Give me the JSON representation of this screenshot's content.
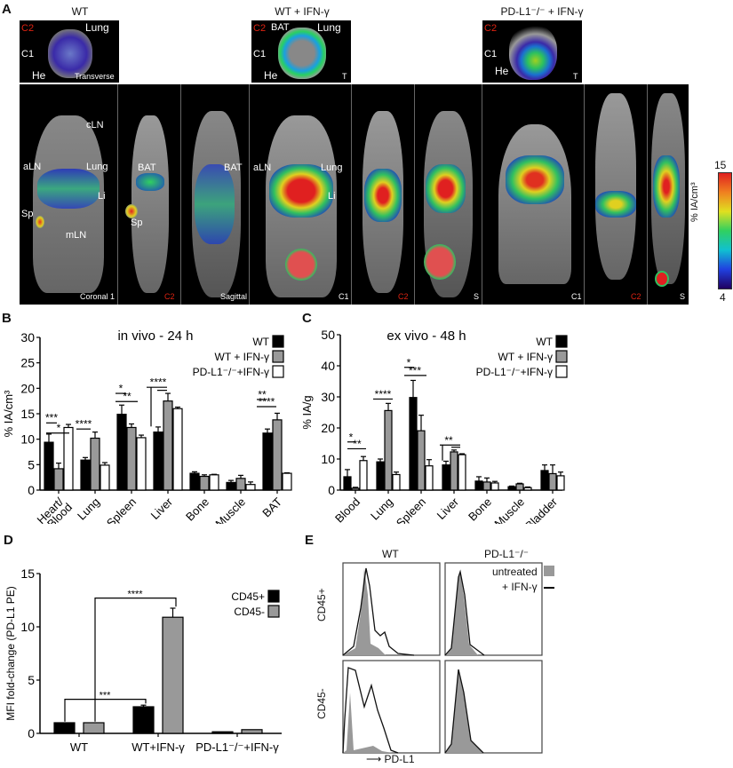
{
  "panelA": {
    "letter": "A",
    "groups": [
      {
        "title": "WT",
        "transverse_labels": [
          "Lung",
          "He",
          "Transverse",
          "C2",
          "C1"
        ],
        "coronal_labels": [
          "cLN",
          "aLN",
          "Lung",
          "Li",
          "Sp",
          "mLN",
          "Coronal 1"
        ],
        "c2_labels": [
          "BAT",
          "Sp",
          "C2"
        ],
        "sagittal_labels": [
          "BAT",
          "Sagittal"
        ]
      },
      {
        "title": "WT + IFN-γ",
        "transverse_labels": [
          "BAT",
          "Lung",
          "He",
          "T",
          "C2",
          "C1"
        ],
        "coronal_labels": [
          "aLN",
          "Lung",
          "Li",
          "C1"
        ],
        "c2_labels": [
          "C2"
        ],
        "sagittal_labels": [
          "S"
        ]
      },
      {
        "title": "PD-L1⁻/⁻ + IFN-γ",
        "transverse_labels": [
          "He",
          "T",
          "C2",
          "C1"
        ],
        "coronal_labels": [
          "C1"
        ],
        "c2_labels": [
          "C2"
        ],
        "sagittal_labels": [
          "S"
        ]
      }
    ],
    "colorbar": {
      "max": "15",
      "min": "4",
      "label": "% IA/cm³"
    }
  },
  "chart_data": [
    {
      "panel": "B",
      "type": "bar",
      "title": "in vivo - 24 h",
      "xlabel": "",
      "ylabel": "% IA/cm³",
      "ylim": [
        0,
        30
      ],
      "yticks": [
        0,
        5,
        10,
        15,
        20,
        25,
        30
      ],
      "categories": [
        "Heart/ Blood",
        "Lung",
        "Spleen",
        "Liver",
        "Bone",
        "Muscle",
        "BAT"
      ],
      "series": [
        {
          "name": "WT",
          "color": "#000000",
          "values": [
            9.4,
            5.9,
            14.9,
            11.4,
            3.3,
            1.5,
            11.2
          ],
          "errors": [
            1.6,
            0.5,
            1.8,
            1.0,
            0.3,
            0.4,
            0.8
          ]
        },
        {
          "name": "WT + IFN-γ",
          "color": "#999999",
          "values": [
            4.2,
            10.2,
            12.3,
            17.5,
            2.7,
            2.3,
            13.8
          ],
          "errors": [
            1.1,
            1.2,
            0.7,
            1.5,
            0.3,
            0.6,
            1.3
          ]
        },
        {
          "name": "PD-L1⁻/⁻+IFN-γ",
          "color": "#ffffff",
          "values": [
            12.3,
            4.9,
            10.3,
            16.0,
            3.0,
            1.1,
            3.3
          ],
          "errors": [
            0.6,
            0.5,
            0.5,
            0.3,
            0.1,
            0.5,
            0.1
          ]
        }
      ],
      "significance": [
        {
          "category": "Heart/ Blood",
          "labels": [
            "***",
            "*"
          ]
        },
        {
          "category": "Lung",
          "labels": [
            "****"
          ]
        },
        {
          "category": "Spleen",
          "labels": [
            "*",
            "**"
          ]
        },
        {
          "category": "Liver",
          "labels": [
            "****"
          ]
        },
        {
          "category": "BAT",
          "labels": [
            "**",
            "****"
          ]
        }
      ],
      "legend_position": "top-right"
    },
    {
      "panel": "C",
      "type": "bar",
      "title": "ex vivo - 48 h",
      "xlabel": "",
      "ylabel": "% IA/g",
      "ylim": [
        0,
        50
      ],
      "yticks": [
        0,
        10,
        20,
        30,
        40,
        50
      ],
      "categories": [
        "Blood",
        "Lung",
        "Spleen",
        "Liver",
        "Bone",
        "Muscle",
        "Bladder"
      ],
      "series": [
        {
          "name": "WT",
          "color": "#000000",
          "values": [
            4.3,
            9.1,
            29.8,
            8.1,
            2.9,
            1.1,
            6.3
          ],
          "errors": [
            2.3,
            0.9,
            5.5,
            1.2,
            1.4,
            0.2,
            1.8
          ]
        },
        {
          "name": "WT + IFN-γ",
          "color": "#999999",
          "values": [
            0.6,
            25.6,
            19.1,
            12.3,
            2.6,
            2.0,
            5.3
          ],
          "errors": [
            0.3,
            2.3,
            5.0,
            0.6,
            1.3,
            0.2,
            2.8
          ]
        },
        {
          "name": "PD-L1⁻/⁻+IFN-γ",
          "color": "#ffffff",
          "values": [
            9.5,
            5.0,
            7.8,
            11.4,
            2.3,
            0.8,
            4.6
          ],
          "errors": [
            1.3,
            0.8,
            2.0,
            0.3,
            0.5,
            0.2,
            1.2
          ]
        }
      ],
      "significance": [
        {
          "category": "Blood",
          "labels": [
            "*",
            "**"
          ]
        },
        {
          "category": "Lung",
          "labels": [
            "****"
          ]
        },
        {
          "category": "Spleen",
          "labels": [
            "*",
            "***"
          ]
        },
        {
          "category": "Liver",
          "labels": [
            "**"
          ]
        }
      ],
      "legend_position": "top-right"
    },
    {
      "panel": "D",
      "type": "bar",
      "title": "",
      "xlabel": "",
      "ylabel": "MFI fold-change (PD-L1 PE)",
      "ylim": [
        0,
        15
      ],
      "yticks": [
        0,
        5,
        10,
        15
      ],
      "categories": [
        "WT",
        "WT+IFN-γ",
        "PD-L1⁻/⁻+IFN-γ"
      ],
      "series": [
        {
          "name": "CD45+",
          "color": "#000000",
          "values": [
            1.0,
            2.5,
            0.15
          ],
          "errors": [
            0,
            0.15,
            0
          ]
        },
        {
          "name": "CD45-",
          "color": "#999999",
          "values": [
            1.0,
            10.9,
            0.35
          ],
          "errors": [
            0,
            0.85,
            0
          ]
        }
      ],
      "significance": [
        {
          "between": [
            "WT CD45+",
            "WT+IFN-γ CD45+"
          ],
          "label": "***"
        },
        {
          "between": [
            "WT CD45-",
            "WT+IFN-γ CD45-"
          ],
          "label": "****"
        }
      ],
      "legend_position": "top-right"
    },
    {
      "panel": "E",
      "type": "histogram",
      "columns": [
        "WT",
        "PD-L1⁻/⁻"
      ],
      "rows": [
        "CD45+",
        "CD45-"
      ],
      "xlabel": "PD-L1",
      "legend": [
        {
          "name": "untreated",
          "style": "filled gray"
        },
        {
          "name": "+ IFN-γ",
          "style": "black line"
        }
      ]
    }
  ],
  "labels": {
    "B": "B",
    "C": "C",
    "D": "D",
    "E": "E",
    "E_col_wt": "WT",
    "E_col_ko": "PD-L1⁻/⁻",
    "E_row_pos": "CD45+",
    "E_row_neg": "CD45-",
    "E_xlabel": "PD-L1",
    "E_leg_untreated": "untreated",
    "E_leg_ifn": "+ IFN-γ"
  }
}
